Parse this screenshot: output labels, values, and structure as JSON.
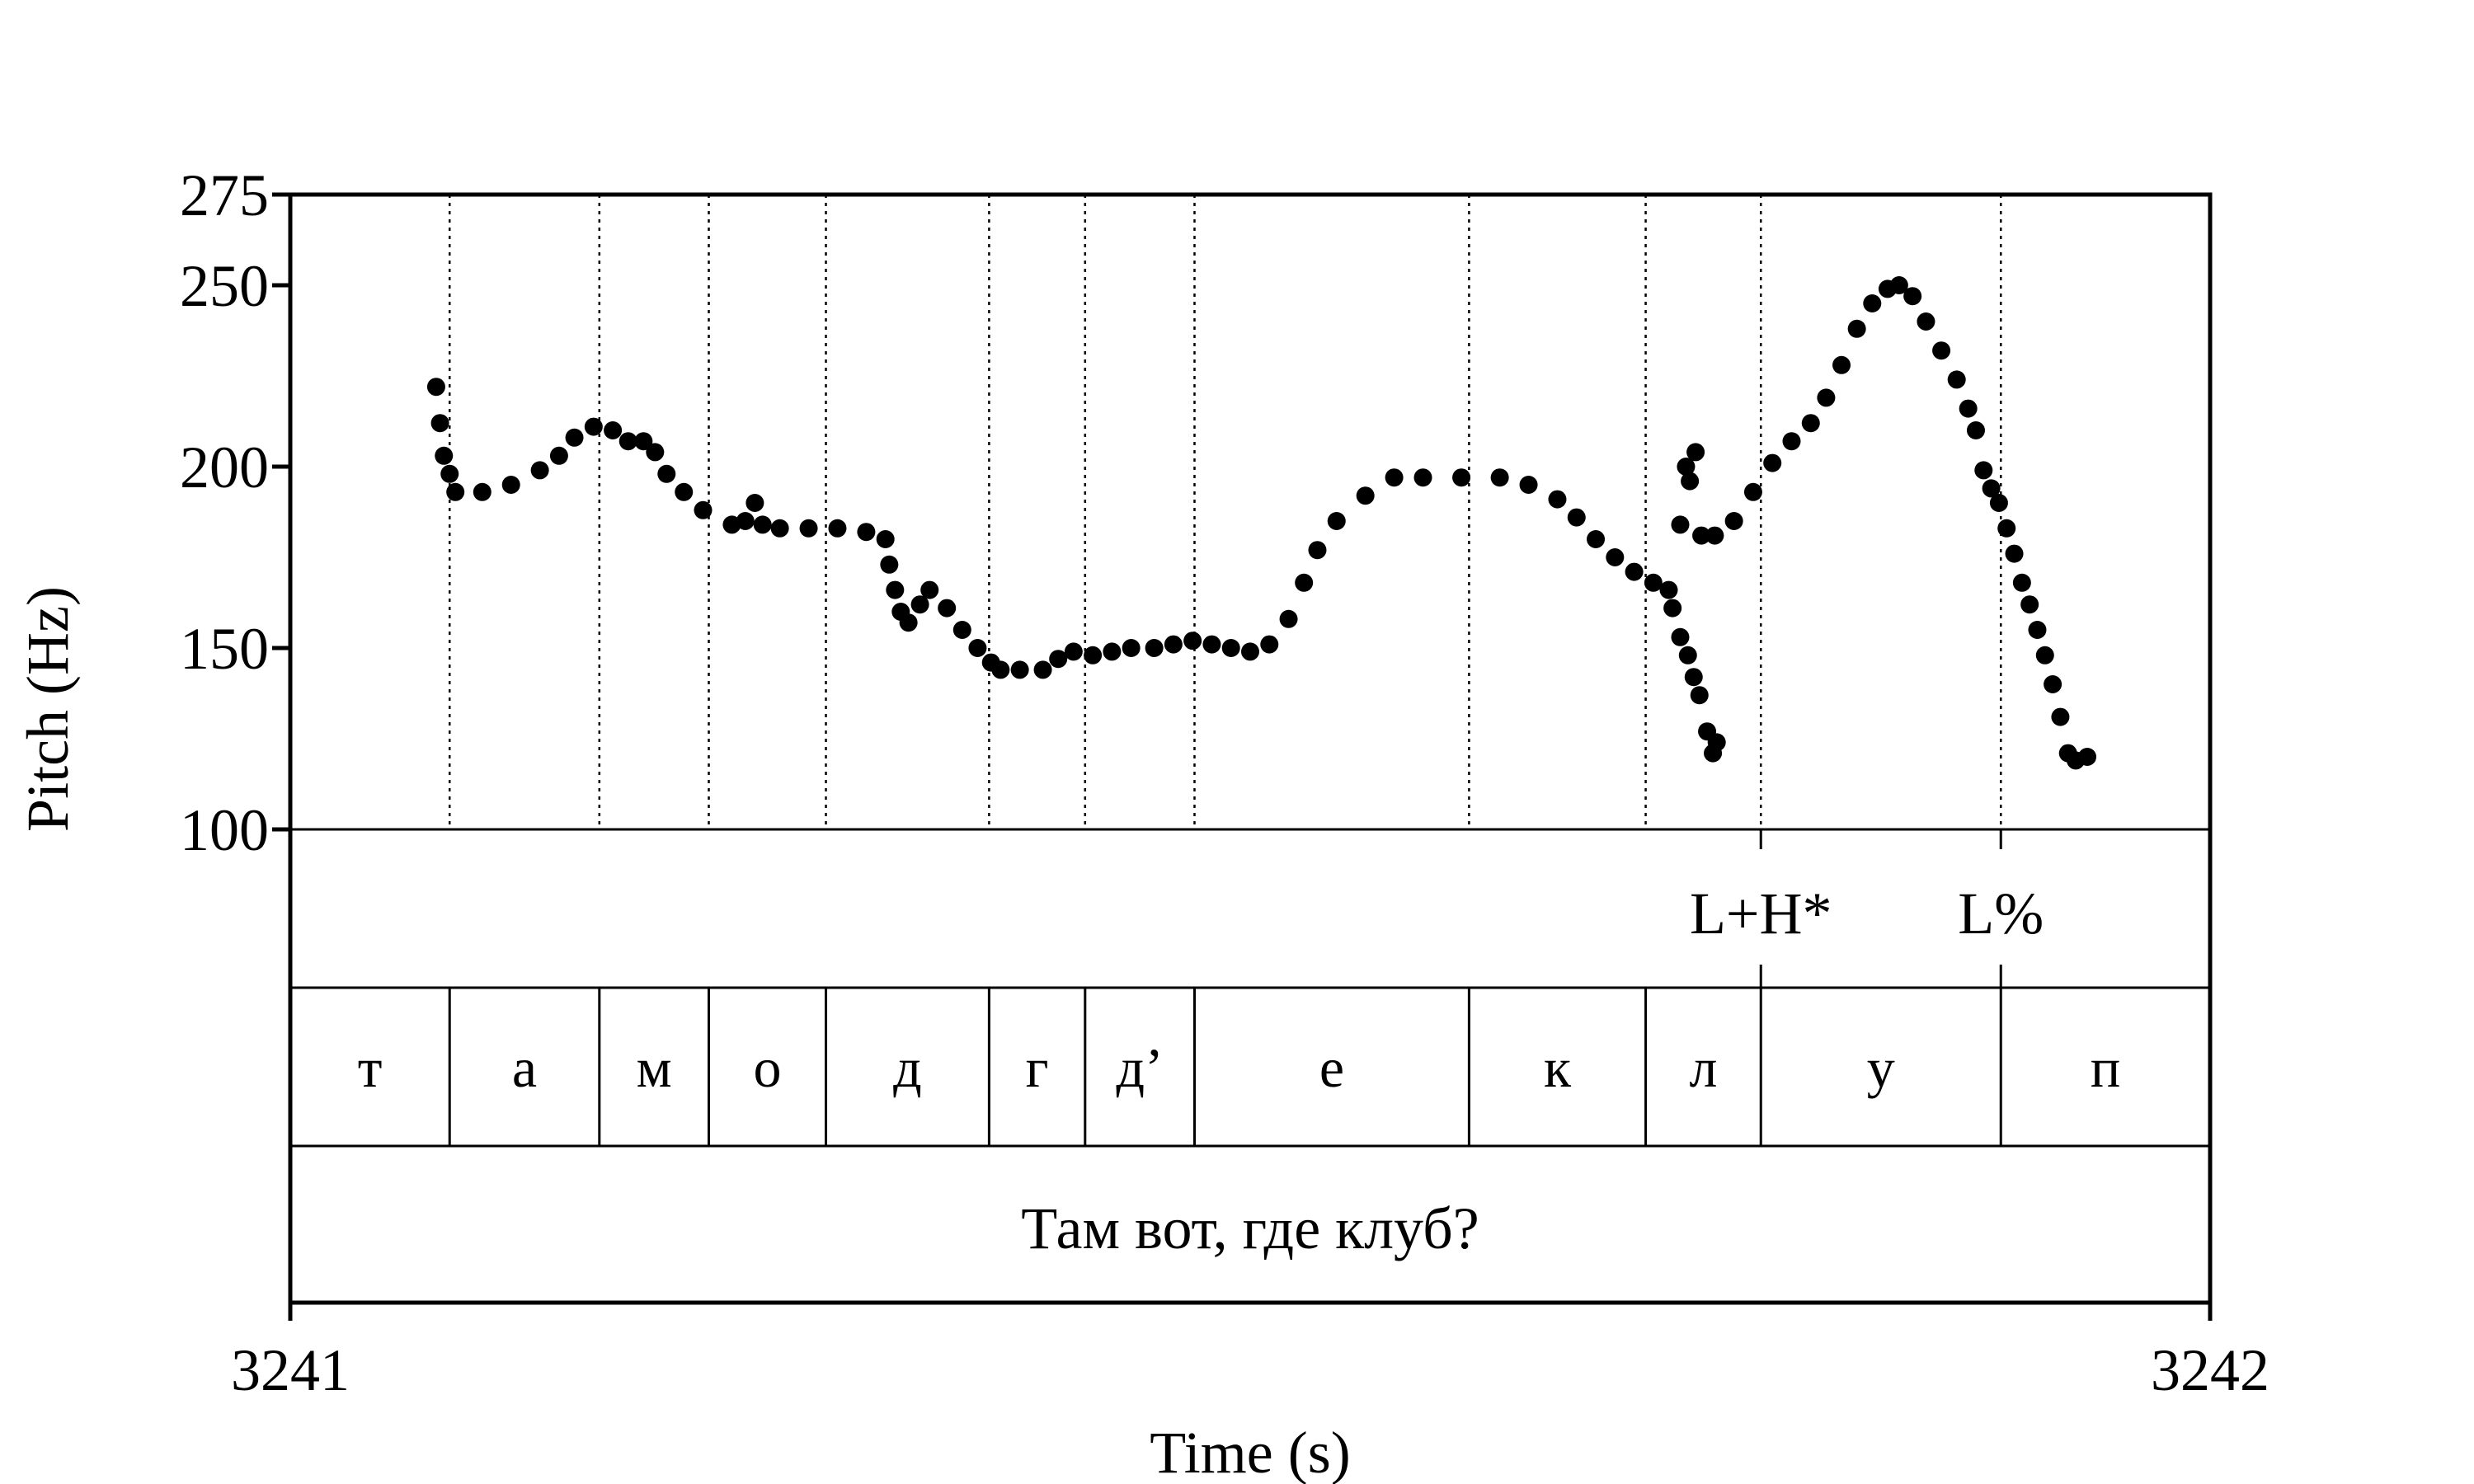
{
  "chart_data": {
    "type": "scatter",
    "xlabel": "Time (s)",
    "ylabel": "Pitch (Hz)",
    "xlim": [
      3241,
      3242
    ],
    "ylim": [
      100,
      275
    ],
    "x_tick_labels": [
      "3241",
      "3242"
    ],
    "y_ticks": [
      {
        "value": 100,
        "label": "100"
      },
      {
        "value": 150,
        "label": "150"
      },
      {
        "value": 200,
        "label": "200"
      },
      {
        "value": 250,
        "label": "250"
      },
      {
        "value": 275,
        "label": "275"
      }
    ],
    "pitch_contour": [
      [
        3241.076,
        222
      ],
      [
        3241.078,
        212
      ],
      [
        3241.08,
        203
      ],
      [
        3241.083,
        198
      ],
      [
        3241.086,
        193
      ],
      [
        3241.1,
        193
      ],
      [
        3241.115,
        195
      ],
      [
        3241.13,
        199
      ],
      [
        3241.14,
        203
      ],
      [
        3241.148,
        208
      ],
      [
        3241.158,
        211
      ],
      [
        3241.168,
        210
      ],
      [
        3241.176,
        207
      ],
      [
        3241.184,
        207
      ],
      [
        3241.19,
        204
      ],
      [
        3241.196,
        198
      ],
      [
        3241.205,
        193
      ],
      [
        3241.215,
        188
      ],
      [
        3241.23,
        184
      ],
      [
        3241.237,
        185
      ],
      [
        3241.242,
        190
      ],
      [
        3241.246,
        184
      ],
      [
        3241.255,
        183
      ],
      [
        3241.27,
        183
      ],
      [
        3241.285,
        183
      ],
      [
        3241.3,
        182
      ],
      [
        3241.31,
        180
      ],
      [
        3241.312,
        173
      ],
      [
        3241.315,
        166
      ],
      [
        3241.318,
        160
      ],
      [
        3241.322,
        157
      ],
      [
        3241.328,
        162
      ],
      [
        3241.333,
        166
      ],
      [
        3241.342,
        161
      ],
      [
        3241.35,
        155
      ],
      [
        3241.358,
        150
      ],
      [
        3241.365,
        146
      ],
      [
        3241.37,
        144
      ],
      [
        3241.38,
        144
      ],
      [
        3241.392,
        144
      ],
      [
        3241.4,
        147
      ],
      [
        3241.408,
        149
      ],
      [
        3241.418,
        148
      ],
      [
        3241.428,
        149
      ],
      [
        3241.438,
        150
      ],
      [
        3241.45,
        150
      ],
      [
        3241.46,
        151
      ],
      [
        3241.47,
        152
      ],
      [
        3241.48,
        151
      ],
      [
        3241.49,
        150
      ],
      [
        3241.5,
        149
      ],
      [
        3241.51,
        151
      ],
      [
        3241.52,
        158
      ],
      [
        3241.528,
        168
      ],
      [
        3241.535,
        177
      ],
      [
        3241.545,
        185
      ],
      [
        3241.56,
        192
      ],
      [
        3241.575,
        197
      ],
      [
        3241.59,
        197
      ],
      [
        3241.61,
        197
      ],
      [
        3241.63,
        197
      ],
      [
        3241.645,
        195
      ],
      [
        3241.66,
        191
      ],
      [
        3241.67,
        186
      ],
      [
        3241.68,
        180
      ],
      [
        3241.69,
        175
      ],
      [
        3241.7,
        171
      ],
      [
        3241.71,
        168
      ],
      [
        3241.718,
        166
      ],
      [
        3241.72,
        161
      ],
      [
        3241.724,
        153
      ],
      [
        3241.728,
        148
      ],
      [
        3241.731,
        142
      ],
      [
        3241.734,
        137
      ],
      [
        3241.738,
        127
      ],
      [
        3241.743,
        124
      ],
      [
        3241.741,
        121
      ],
      [
        3241.727,
        200
      ],
      [
        3241.729,
        196
      ],
      [
        3241.732,
        204
      ],
      [
        3241.724,
        184
      ],
      [
        3241.735,
        181
      ],
      [
        3241.742,
        181
      ],
      [
        3241.752,
        185
      ],
      [
        3241.762,
        193
      ],
      [
        3241.772,
        201
      ],
      [
        3241.782,
        207
      ],
      [
        3241.792,
        212
      ],
      [
        3241.8,
        219
      ],
      [
        3241.808,
        228
      ],
      [
        3241.816,
        238
      ],
      [
        3241.824,
        245
      ],
      [
        3241.832,
        249
      ],
      [
        3241.838,
        250
      ],
      [
        3241.845,
        247
      ],
      [
        3241.852,
        240
      ],
      [
        3241.86,
        232
      ],
      [
        3241.868,
        224
      ],
      [
        3241.874,
        216
      ],
      [
        3241.878,
        210
      ],
      [
        3241.882,
        199
      ],
      [
        3241.886,
        194
      ],
      [
        3241.89,
        190
      ],
      [
        3241.894,
        183
      ],
      [
        3241.898,
        176
      ],
      [
        3241.902,
        168
      ],
      [
        3241.906,
        162
      ],
      [
        3241.91,
        155
      ],
      [
        3241.914,
        148
      ],
      [
        3241.918,
        140
      ],
      [
        3241.922,
        131
      ],
      [
        3241.926,
        121
      ],
      [
        3241.93,
        119
      ],
      [
        3241.936,
        120
      ]
    ],
    "intervals": [
      {
        "label": "т",
        "start": 3241.0,
        "end": 3241.083
      },
      {
        "label": "а",
        "start": 3241.083,
        "end": 3241.161
      },
      {
        "label": "м",
        "start": 3241.161,
        "end": 3241.218
      },
      {
        "label": "о",
        "start": 3241.218,
        "end": 3241.279
      },
      {
        "label": "д",
        "start": 3241.279,
        "end": 3241.364
      },
      {
        "label": "г",
        "start": 3241.364,
        "end": 3241.414
      },
      {
        "label": "д’",
        "start": 3241.414,
        "end": 3241.471
      },
      {
        "label": "е",
        "start": 3241.471,
        "end": 3241.614
      },
      {
        "label": "к",
        "start": 3241.614,
        "end": 3241.706
      },
      {
        "label": "л",
        "start": 3241.706,
        "end": 3241.766
      },
      {
        "label": "у",
        "start": 3241.766,
        "end": 3241.891
      },
      {
        "label": "п",
        "start": 3241.891,
        "end": 3242.0
      }
    ],
    "tones": [
      {
        "label": "L+H*",
        "time": 3241.766
      },
      {
        "label": "L%",
        "time": 3241.891
      }
    ],
    "sentence": "Там вот, где клуб?"
  }
}
